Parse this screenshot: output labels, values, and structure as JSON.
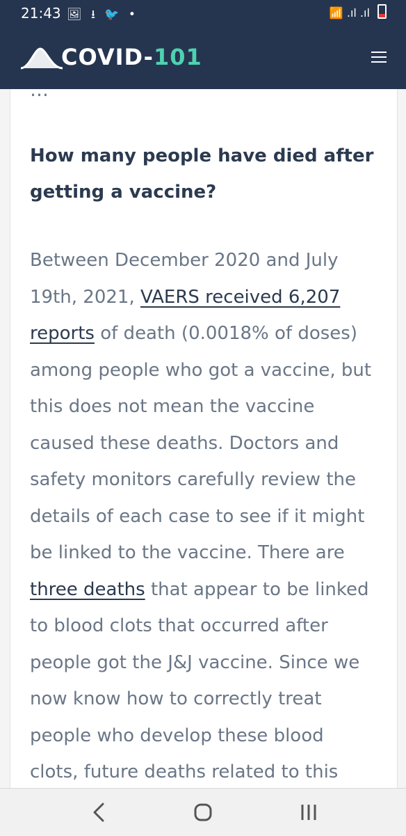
{
  "status_bar": {
    "time": "21:43",
    "left_icons": [
      "image-icon",
      "download-icon",
      "twitter-icon",
      "dot-icon"
    ],
    "left_glyphs": "🖼 ⭳ 🐦 •",
    "right_icons": [
      "wifi-icon",
      "signal-icon",
      "signal-icon",
      "battery-icon"
    ],
    "right_glyphs": "📶 .ıl .ıl"
  },
  "header": {
    "logo_prefix": "COVID-",
    "logo_number": "101",
    "menu_icon": "hamburger-menu-icon"
  },
  "article": {
    "clipped_text": "…",
    "question": "How many people have died after getting a vaccine?",
    "answer": {
      "l1": "Between December 2020 and July",
      "l2_before": "19th, 2021, ",
      "link_vaers_part1": "VAERS received 6,207",
      "link_vaers_part2": "reports",
      "l3_after": " of death (0.0018% of doses)",
      "l4": "among people who got a vaccine, but",
      "l5": "this does not mean the vaccine",
      "l6": "caused these deaths. Doctors and",
      "l7": "safety monitors carefully review the",
      "l8": "details of each case to see if it might",
      "l9": "be linked to the vaccine. There are",
      "link_three_deaths": "three deaths",
      "l10_after": " that appear to be linked",
      "l11": "to blood clots that occurred after",
      "l12": "people got the J&J vaccine. Since we",
      "l13": "now know how to correctly treat",
      "l14": "people who develop these blood",
      "l15": "clots, future deaths related to this"
    }
  },
  "nav_bar": {
    "buttons": [
      "back-icon",
      "home-icon",
      "recents-icon"
    ]
  },
  "colors": {
    "header_bg": "#253550",
    "accent": "#4fd1b0",
    "heading": "#2b3a4f",
    "body_text": "#6a7686"
  }
}
